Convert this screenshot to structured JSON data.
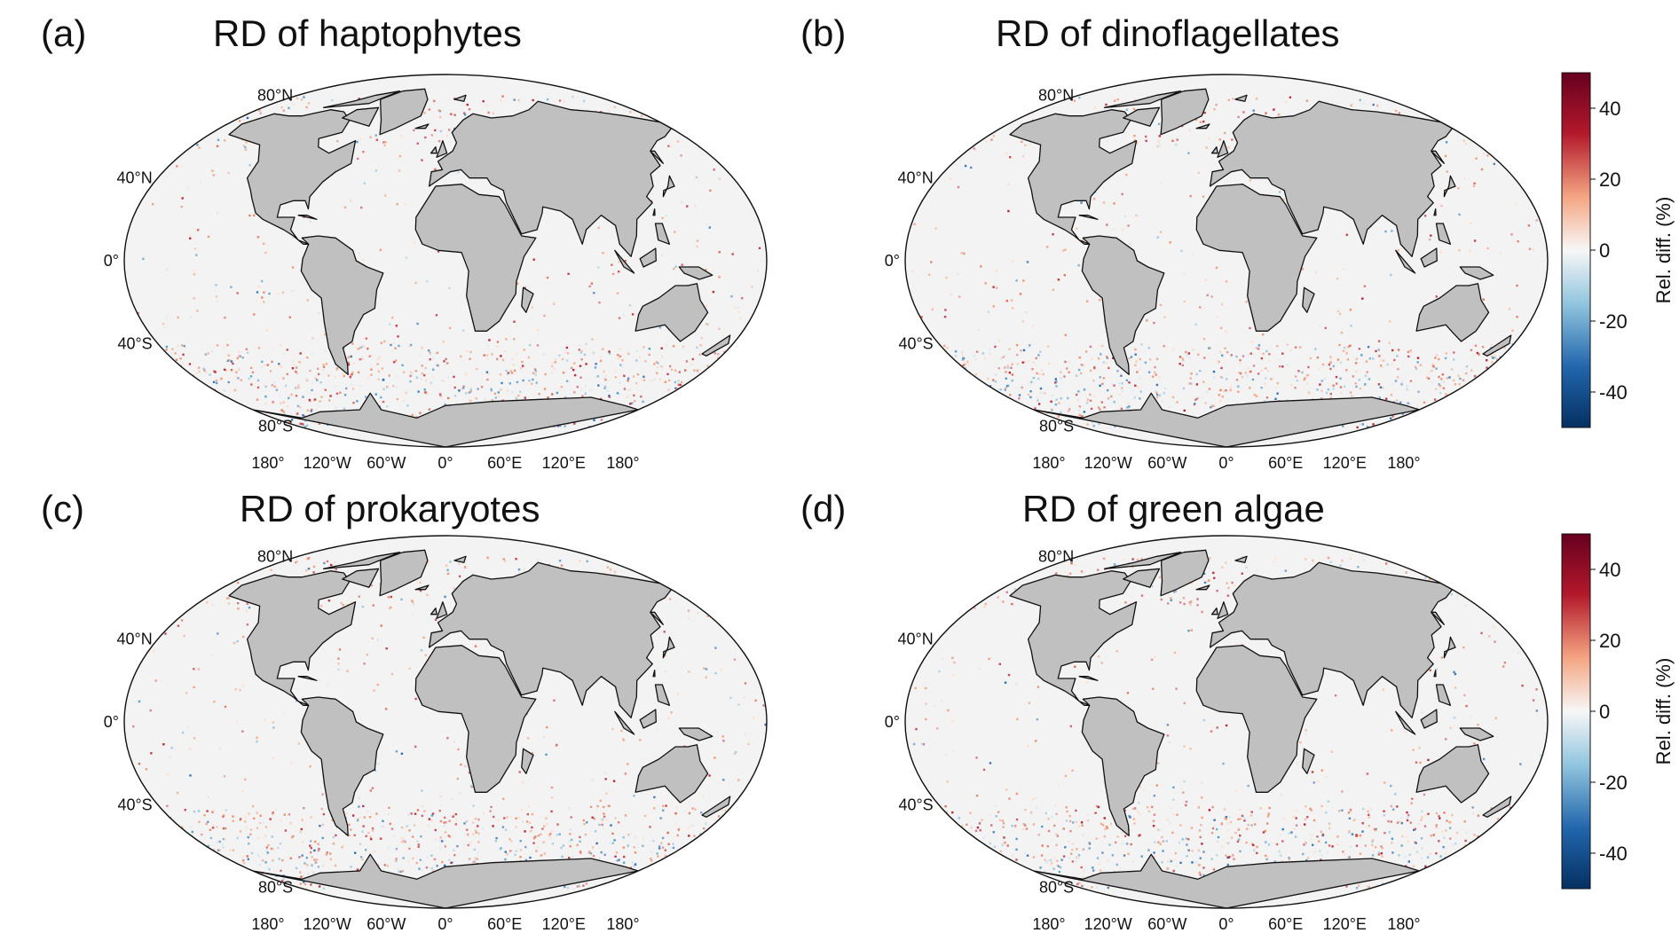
{
  "panels": [
    {
      "letter": "(a)",
      "title": "RD of haptophytes"
    },
    {
      "letter": "(b)",
      "title": "RD of dinoflagellates"
    },
    {
      "letter": "(c)",
      "title": "RD of prokaryotes"
    },
    {
      "letter": "(d)",
      "title": "RD of green algae"
    }
  ],
  "lat_labels": [
    "80°N",
    "40°N",
    "0°",
    "40°S",
    "80°S"
  ],
  "lon_labels": [
    "180°",
    "120°W",
    "60°W",
    "0°",
    "60°E",
    "120°E",
    "180°"
  ],
  "colorbar": {
    "label": "Rel. diff. (%)",
    "ticks": [
      "40",
      "20",
      "0",
      "-20",
      "-40"
    ],
    "range": [
      -50,
      50
    ],
    "colormap": [
      "#053061",
      "#2166ac",
      "#92c5de",
      "#f7f7f7",
      "#f4a582",
      "#b2182b",
      "#67001f"
    ]
  },
  "colors": {
    "land": "#c0c0c0",
    "ocean": "#f3f3f3",
    "coast": "#111111"
  }
}
